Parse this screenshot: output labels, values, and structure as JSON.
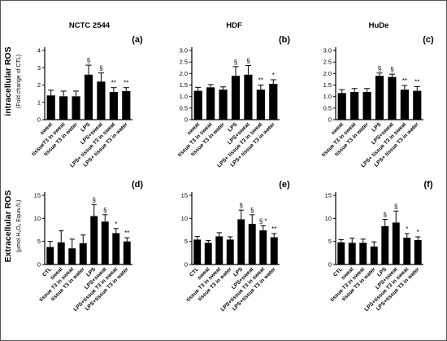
{
  "row_labels": {
    "top": "intracellular ROS",
    "top_unit": "(Fold change of CTL)",
    "bottom": "Extracellular ROS",
    "bottom_unit": "(µmol H₂O₂ Equiv./L)"
  },
  "column_titles": [
    "NCTC 2544",
    "HDF",
    "HuDe"
  ],
  "chart_data": [
    {
      "panel": "(a)",
      "type": "bar",
      "row": 0,
      "col": 0,
      "ylim": [
        0,
        4
      ],
      "yticks": [
        0,
        1,
        2,
        3,
        4
      ],
      "categories": [
        "sweat",
        "tissueT3 in sweat",
        "tissue T3 in water",
        "LPS",
        "LPS+sweat",
        "LPS+ tissue T3 in sweat",
        "LPS+ tissue T3 in water"
      ],
      "values": [
        1.4,
        1.35,
        1.35,
        2.6,
        2.2,
        1.6,
        1.65
      ],
      "errors": [
        0.3,
        0.3,
        0.3,
        0.55,
        0.5,
        0.25,
        0.2
      ],
      "marks": [
        "",
        "",
        "",
        "§",
        "§",
        "**",
        "**"
      ]
    },
    {
      "panel": "(b)",
      "type": "bar",
      "row": 0,
      "col": 1,
      "ylim": [
        0,
        3
      ],
      "yticks": [
        0,
        0.5,
        1,
        1.5,
        2,
        2.5,
        3
      ],
      "ytick_labels": [
        "0",
        "0.5",
        "1.0",
        "1.5",
        "2.0",
        "2.5",
        "3.0"
      ],
      "categories": [
        "sweat",
        "tissue T3 in sweat",
        "tissue T3 in water",
        "LPS",
        "LPS+sweat",
        "LPS+ tissue T3 in sweat",
        "LPS+ tissue T3 in water"
      ],
      "values": [
        1.25,
        1.4,
        1.3,
        1.9,
        1.95,
        1.3,
        1.55
      ],
      "errors": [
        0.15,
        0.12,
        0.12,
        0.4,
        0.4,
        0.2,
        0.18
      ],
      "marks": [
        "",
        "",
        "",
        "§",
        "§",
        "**",
        "*"
      ]
    },
    {
      "panel": "(c)",
      "type": "bar",
      "row": 0,
      "col": 2,
      "ylim": [
        0,
        3
      ],
      "yticks": [
        0,
        0.5,
        1,
        1.5,
        2,
        2.5,
        3
      ],
      "ytick_labels": [
        "0",
        "0.5",
        "1.0",
        "1.5",
        "2.0",
        "2.5",
        "3.0"
      ],
      "categories": [
        "sweat",
        "tissue T3 in sweat",
        "tissue T3 in water",
        "LPS",
        "LPS+sweat",
        "LPS+ tissue T3 in sweat",
        "LPS+ tissue T3 in water"
      ],
      "values": [
        1.15,
        1.2,
        1.2,
        1.9,
        1.85,
        1.3,
        1.25
      ],
      "errors": [
        0.15,
        0.15,
        0.15,
        0.12,
        0.12,
        0.18,
        0.18
      ],
      "marks": [
        "",
        "",
        "",
        "§",
        "§",
        "**",
        "**"
      ]
    },
    {
      "panel": "(d)",
      "type": "bar",
      "row": 1,
      "col": 0,
      "ylim": [
        0,
        15
      ],
      "yticks": [
        0,
        5,
        10,
        15
      ],
      "categories": [
        "CTL",
        "sweat",
        "tissue T3 in sweat",
        "tissue T3 in water",
        "LPS",
        "LPS+sweat",
        "LPS+tissue T3 in sweat",
        "LPS+tissue T3 in water"
      ],
      "values": [
        3.8,
        4.8,
        3.5,
        4.6,
        10.5,
        9.3,
        6.8,
        5.0
      ],
      "errors": [
        1.2,
        2.5,
        2.0,
        1.8,
        2.5,
        1.5,
        1.0,
        0.8
      ],
      "marks": [
        "",
        "",
        "",
        "",
        "§",
        "§",
        "*",
        "**"
      ]
    },
    {
      "panel": "(e)",
      "type": "bar",
      "row": 1,
      "col": 1,
      "ylim": [
        0,
        15
      ],
      "yticks": [
        0,
        5,
        10,
        15
      ],
      "categories": [
        "CTL",
        "sweat",
        "tissue T3 in sweat",
        "tissue T3 in water",
        "LPS",
        "LPS+sweat",
        "LPS+tissue T3 in sweat",
        "LPS+tissue T3 in water"
      ],
      "values": [
        5.4,
        4.7,
        6.1,
        5.4,
        9.8,
        8.8,
        7.4,
        5.9
      ],
      "errors": [
        0.7,
        0.5,
        0.8,
        0.6,
        2.0,
        2.0,
        1.0,
        0.8
      ],
      "marks": [
        "",
        "",
        "",
        "",
        "§",
        "§",
        "§ *",
        "**"
      ]
    },
    {
      "panel": "(f)",
      "type": "bar",
      "row": 1,
      "col": 2,
      "ylim": [
        0,
        15
      ],
      "yticks": [
        0,
        5,
        10,
        15
      ],
      "categories": [
        "CTL",
        "sweat",
        "tissue T3 in sweat",
        "tissue T3 in water",
        "LPS",
        "LPS+sweat",
        "LPS+tissue T3 in sweat",
        "LPS+tissue T3 in water"
      ],
      "values": [
        4.8,
        4.7,
        4.7,
        3.9,
        8.3,
        9.1,
        5.8,
        5.3
      ],
      "errors": [
        0.6,
        1.0,
        0.8,
        1.0,
        1.5,
        2.5,
        0.9,
        0.7
      ],
      "marks": [
        "",
        "",
        "",
        "",
        "§",
        "§",
        "*",
        "*"
      ]
    }
  ]
}
